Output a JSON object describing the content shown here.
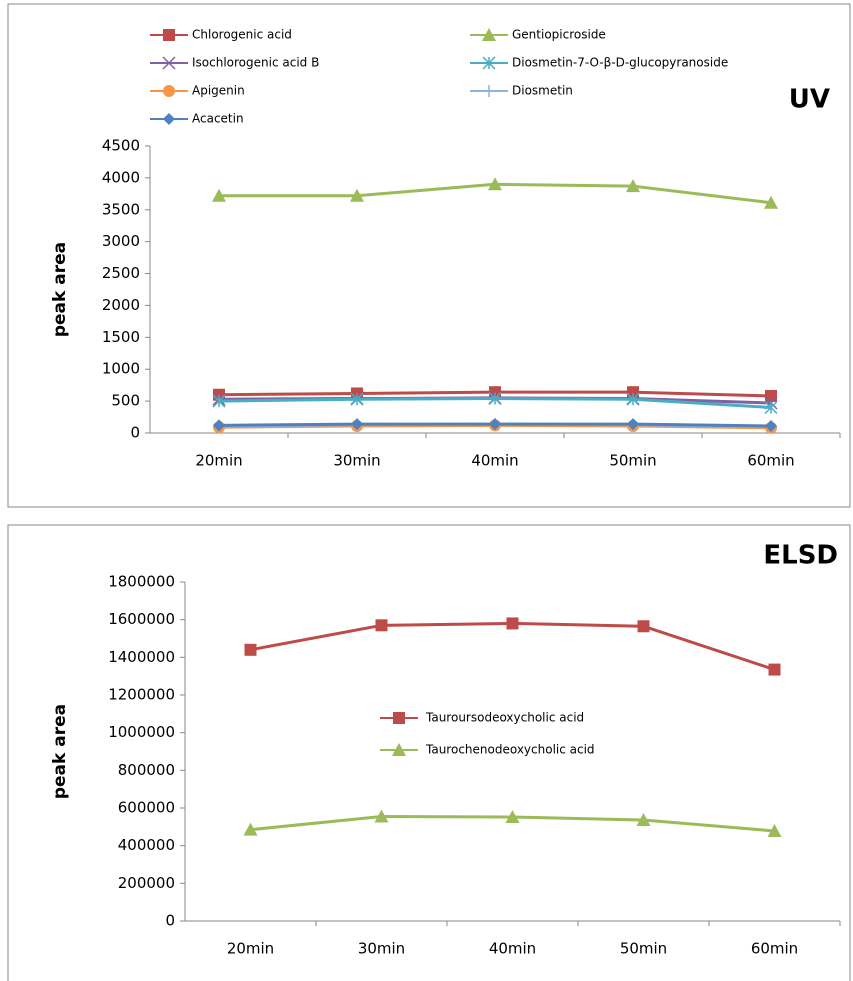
{
  "chart_data": [
    {
      "type": "line",
      "title": "UV",
      "ylabel": "peak area",
      "categories": [
        "20min",
        "30min",
        "40min",
        "50min",
        "60min"
      ],
      "ylim": [
        0,
        4500
      ],
      "yticks": [
        0,
        500,
        1000,
        1500,
        2000,
        2500,
        3000,
        3500,
        4000,
        4500
      ],
      "grid": false,
      "legend": "top",
      "series": [
        {
          "name": "Chlorogenic acid",
          "color": "#be4b48",
          "marker": "square",
          "values": [
            600,
            620,
            640,
            640,
            580
          ]
        },
        {
          "name": "Gentiopicroside",
          "color": "#9bbb59",
          "marker": "triangle",
          "values": [
            3720,
            3720,
            3900,
            3870,
            3610
          ]
        },
        {
          "name": "Isochlorogenic acid B",
          "color": "#7f60a0",
          "marker": "x",
          "values": [
            530,
            540,
            550,
            540,
            470
          ]
        },
        {
          "name": "Diosmetin-7-O-β-D-glucopyranoside",
          "color": "#4bacc6",
          "marker": "star",
          "values": [
            500,
            530,
            540,
            530,
            400
          ]
        },
        {
          "name": "Apigenin",
          "color": "#f79646",
          "marker": "circle",
          "values": [
            90,
            110,
            120,
            110,
            80
          ]
        },
        {
          "name": "Diosmetin",
          "color": "#8eb4e3",
          "marker": "plus",
          "values": [
            110,
            130,
            140,
            130,
            100
          ]
        },
        {
          "name": "Acacetin",
          "color": "#4f81bd",
          "marker": "diamond",
          "values": [
            120,
            140,
            140,
            140,
            110
          ]
        }
      ]
    },
    {
      "type": "line",
      "title": "ELSD",
      "ylabel": "peak area",
      "categories": [
        "20min",
        "30min",
        "40min",
        "50min",
        "60min"
      ],
      "ylim": [
        0,
        1800000
      ],
      "yticks": [
        0,
        200000,
        400000,
        600000,
        800000,
        1000000,
        1200000,
        1400000,
        1600000,
        1800000
      ],
      "grid": false,
      "legend": "center",
      "series": [
        {
          "name": "Tauroursodeoxycholic acid",
          "color": "#be4b48",
          "marker": "square",
          "values": [
            1440000,
            1570000,
            1580000,
            1565000,
            1335000
          ]
        },
        {
          "name": "Taurochenodeoxycholic acid",
          "color": "#9bbb59",
          "marker": "triangle",
          "values": [
            485000,
            555000,
            552000,
            536000,
            478000
          ]
        }
      ]
    }
  ]
}
